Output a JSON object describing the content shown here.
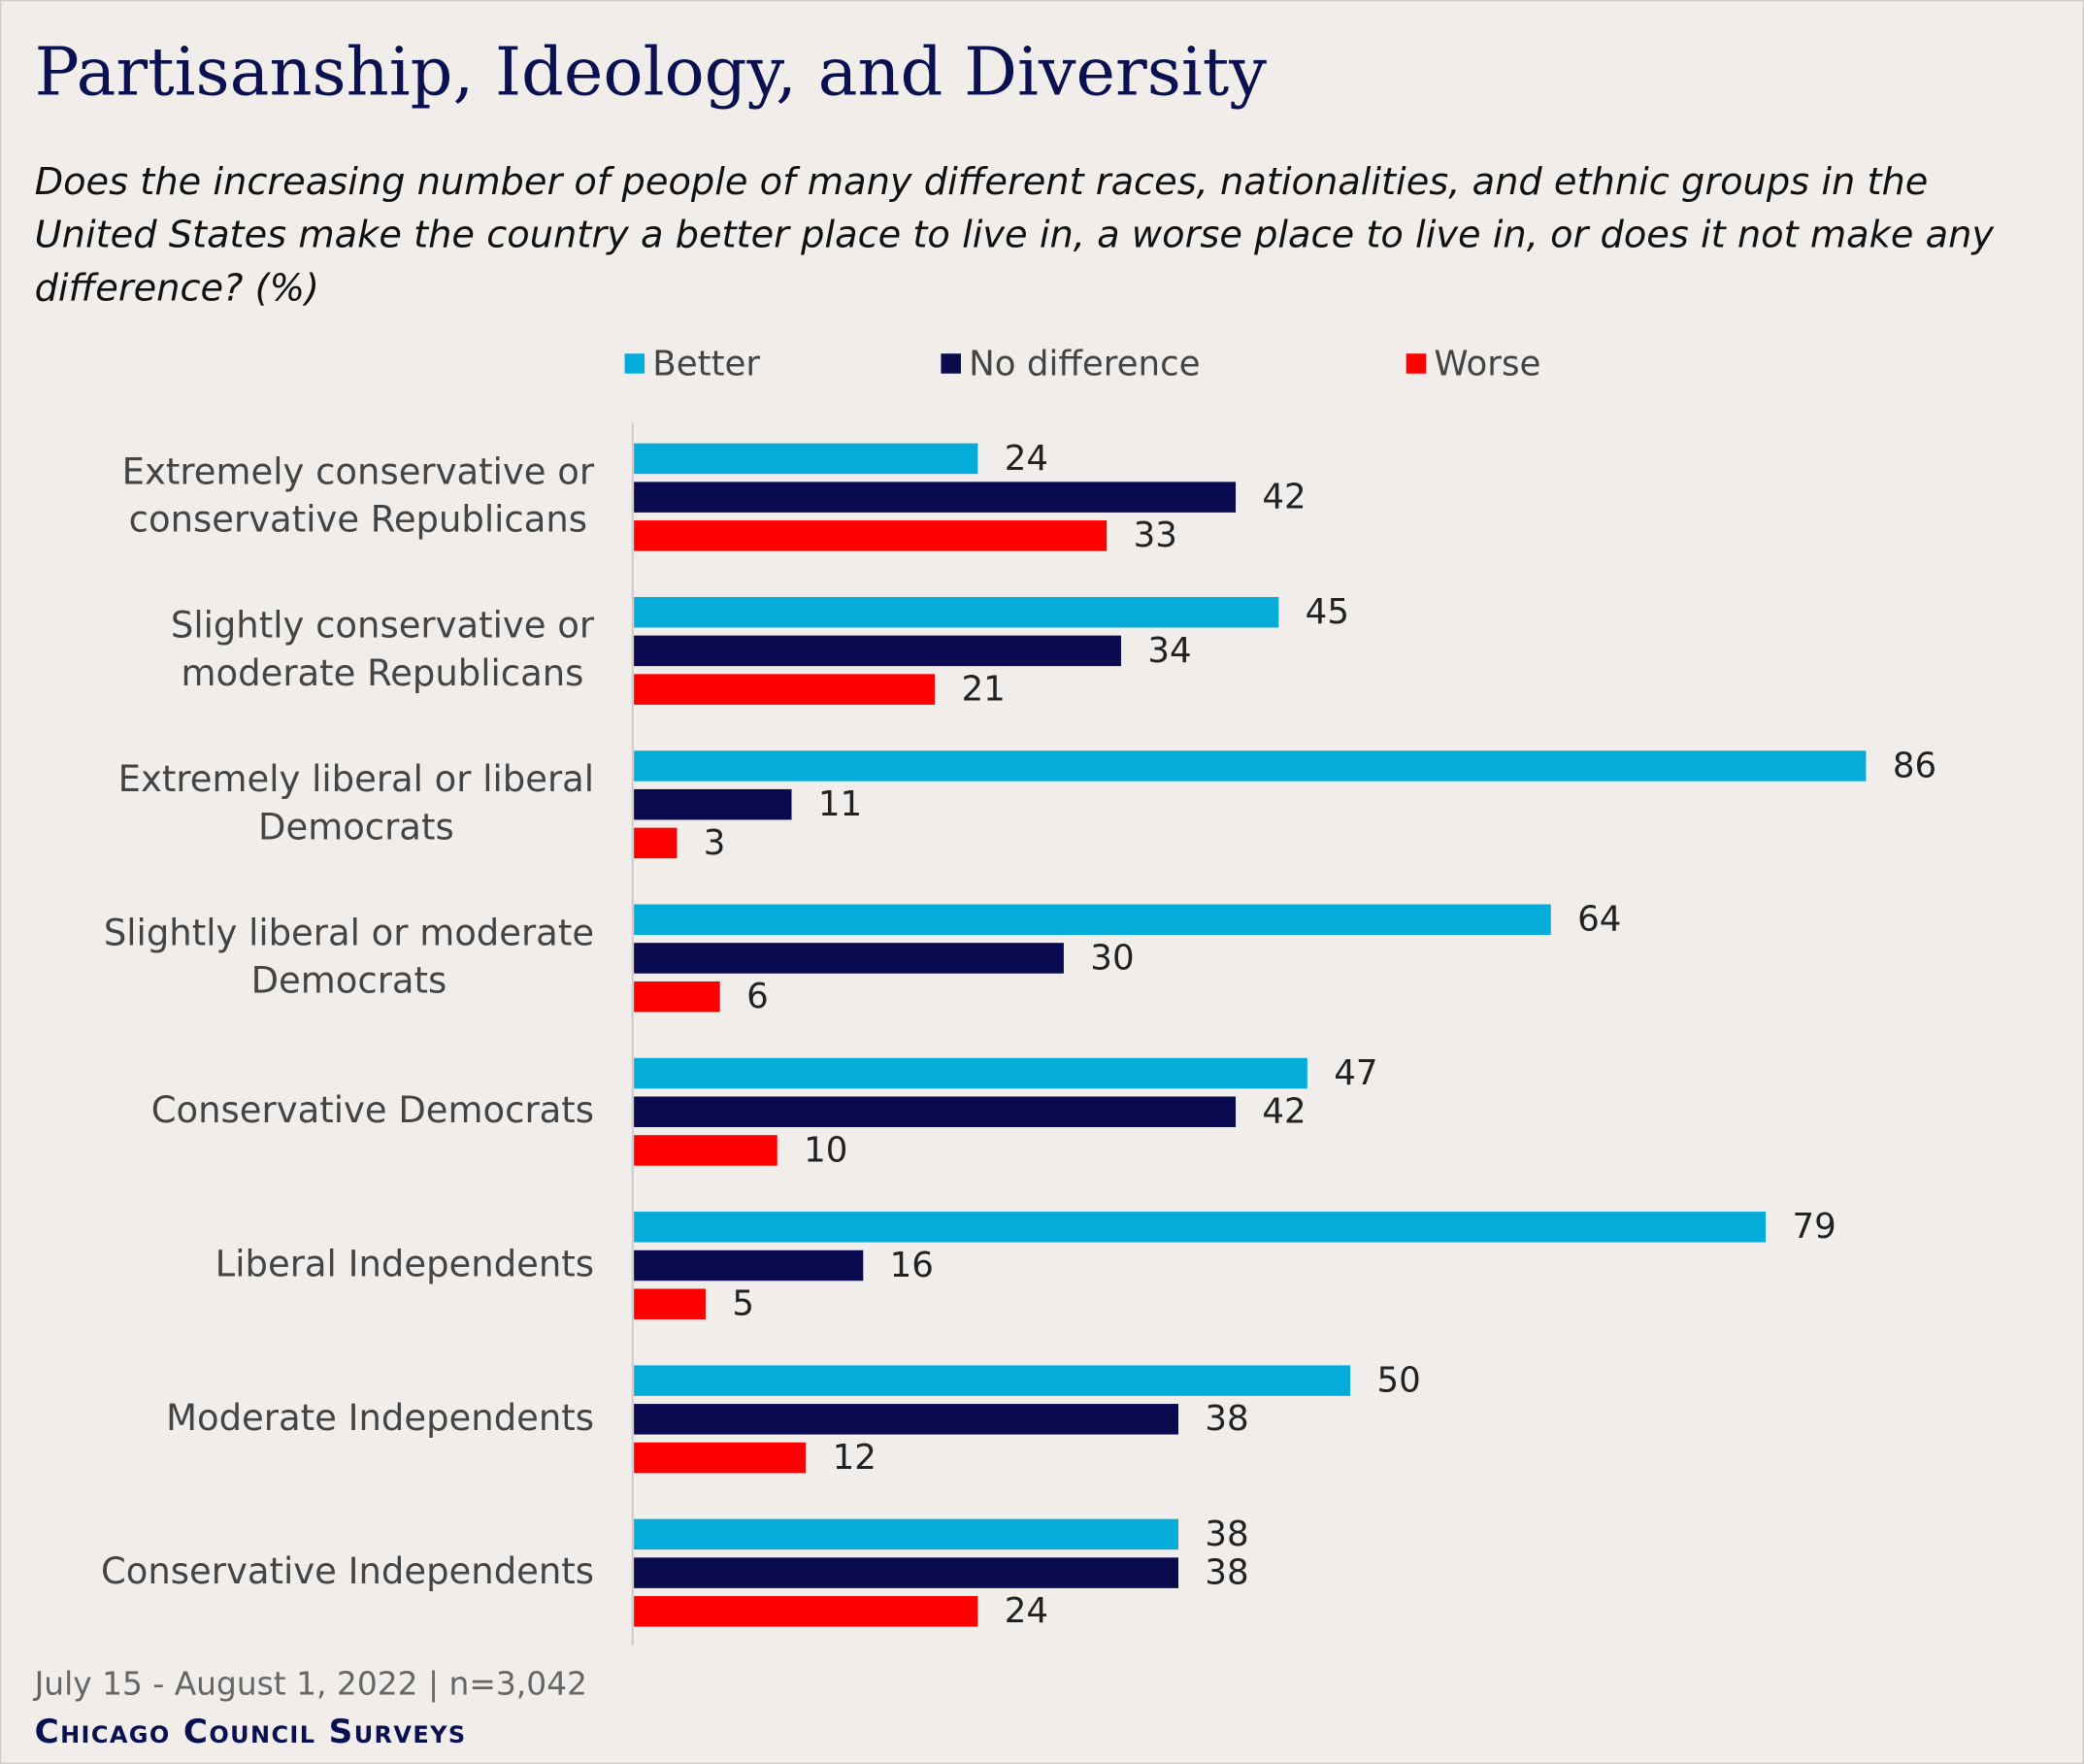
{
  "chart_data": {
    "type": "hbar",
    "title": "Partisanship, Ideology, and Diversity",
    "subtitle": "Does the increasing number of people of many different races, nationalities, and ethnic groups in the United States make the country a better place to live in, a worse place to live in, or does it not make any difference? (%)",
    "categories": [
      "Extremely conservative or conservative Republicans",
      "Slightly conservative or moderate Republicans",
      "Extremely liberal or liberal Democrats",
      "Slightly liberal or moderate Democrats",
      "Conservative Democrats",
      "Liberal Independents",
      "Moderate Independents",
      "Conservative Independents"
    ],
    "series": [
      {
        "name": "Better",
        "color": "#06acd9",
        "values": [
          24,
          45,
          86,
          64,
          47,
          79,
          50,
          38
        ]
      },
      {
        "name": "No difference",
        "color": "#0a0a50",
        "values": [
          42,
          34,
          11,
          30,
          42,
          16,
          38,
          38
        ]
      },
      {
        "name": "Worse",
        "color": "#ff0000",
        "values": [
          33,
          21,
          3,
          6,
          10,
          5,
          12,
          24
        ]
      }
    ],
    "note": "July 15 - August 1, 2022 | n=3,042",
    "source": "Chicago Council Surveys"
  }
}
